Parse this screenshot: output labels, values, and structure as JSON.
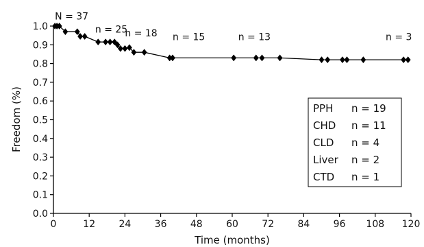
{
  "chart_data": {
    "type": "line",
    "title": "",
    "xlabel": "Time (months)",
    "ylabel": "Freedom (%)",
    "xlim": [
      0,
      120
    ],
    "ylim": [
      0.0,
      1.0
    ],
    "x_ticks": [
      0,
      12,
      24,
      36,
      48,
      60,
      72,
      84,
      96,
      108,
      120
    ],
    "y_ticks": [
      "0.0",
      "0.1",
      "0.2",
      "0.3",
      "0.4",
      "0.5",
      "0.6",
      "0.7",
      "0.8",
      "0.9",
      "1.0"
    ],
    "grid": false,
    "series": [
      {
        "line_color": "#000000",
        "marker": "diamond",
        "points": [
          {
            "x": 0.5,
            "y": 1.0
          },
          {
            "x": 1.2,
            "y": 1.0
          },
          {
            "x": 2.0,
            "y": 1.0
          },
          {
            "x": 4.0,
            "y": 0.97
          },
          {
            "x": 8.0,
            "y": 0.97
          },
          {
            "x": 9.0,
            "y": 0.945
          },
          {
            "x": 10.5,
            "y": 0.945
          },
          {
            "x": 15.0,
            "y": 0.915
          },
          {
            "x": 17.5,
            "y": 0.915
          },
          {
            "x": 19.0,
            "y": 0.915
          },
          {
            "x": 20.5,
            "y": 0.915
          },
          {
            "x": 21.5,
            "y": 0.9
          },
          {
            "x": 22.5,
            "y": 0.88
          },
          {
            "x": 24.0,
            "y": 0.88
          },
          {
            "x": 25.5,
            "y": 0.885
          },
          {
            "x": 27.0,
            "y": 0.86
          },
          {
            "x": 30.5,
            "y": 0.86
          },
          {
            "x": 39.0,
            "y": 0.83
          },
          {
            "x": 40.0,
            "y": 0.83
          },
          {
            "x": 60.5,
            "y": 0.83
          },
          {
            "x": 68.0,
            "y": 0.83
          },
          {
            "x": 70.0,
            "y": 0.83
          },
          {
            "x": 76.0,
            "y": 0.83
          },
          {
            "x": 90.0,
            "y": 0.82
          },
          {
            "x": 92.0,
            "y": 0.82
          },
          {
            "x": 97.0,
            "y": 0.82
          },
          {
            "x": 98.5,
            "y": 0.82
          },
          {
            "x": 104.0,
            "y": 0.82
          },
          {
            "x": 117.5,
            "y": 0.82
          },
          {
            "x": 119.0,
            "y": 0.82
          }
        ]
      }
    ],
    "annotations": [
      {
        "text": "N = 37",
        "x": 0.5,
        "y": 1.035
      },
      {
        "text": "n = 25",
        "x": 14.0,
        "y": 0.965
      },
      {
        "text": "n = 18",
        "x": 24.0,
        "y": 0.945
      },
      {
        "text": "n = 15",
        "x": 40.0,
        "y": 0.925
      },
      {
        "text": "n = 13",
        "x": 62.0,
        "y": 0.925
      },
      {
        "text": "n = 3",
        "x": 111.5,
        "y": 0.925
      }
    ],
    "legend": {
      "position": "right",
      "entries": [
        {
          "label": "PPH",
          "count": "n = 19"
        },
        {
          "label": "CHD",
          "count": "n = 11"
        },
        {
          "label": "CLD",
          "count": "n = 4"
        },
        {
          "label": "Liver",
          "count": "n = 2"
        },
        {
          "label": "CTD",
          "count": "n = 1"
        }
      ]
    }
  }
}
